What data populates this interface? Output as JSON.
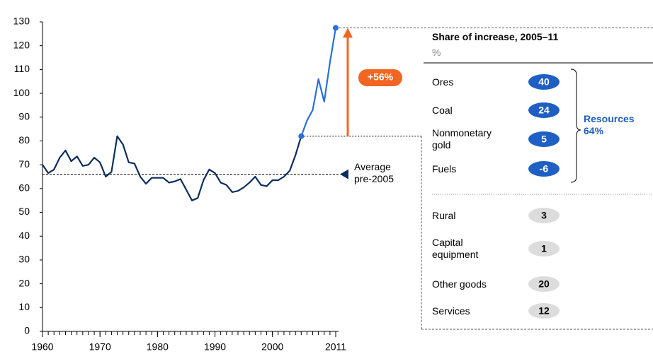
{
  "chart_data": {
    "type": "line",
    "x": [
      1960,
      1961,
      1962,
      1963,
      1964,
      1965,
      1966,
      1967,
      1968,
      1969,
      1970,
      1971,
      1972,
      1973,
      1974,
      1975,
      1976,
      1977,
      1978,
      1979,
      1980,
      1981,
      1982,
      1983,
      1984,
      1985,
      1986,
      1987,
      1988,
      1989,
      1990,
      1991,
      1992,
      1993,
      1994,
      1995,
      1996,
      1997,
      1998,
      1999,
      2000,
      2001,
      2002,
      2003,
      2004,
      2005,
      2006,
      2007,
      2008,
      2009,
      2010,
      2011
    ],
    "series": [
      {
        "color": "#0b2d5e",
        "highlight_color": "#2a6fd6",
        "highlight_from": 2005,
        "values": [
          70,
          66.5,
          68,
          73,
          76,
          71.5,
          73.5,
          69.5,
          70,
          73,
          71,
          65,
          67,
          82,
          78.5,
          71,
          70.5,
          65,
          62,
          64.5,
          64.5,
          64.5,
          62.5,
          63,
          64,
          59.5,
          55,
          56,
          63.5,
          68,
          66.5,
          62.5,
          61.5,
          58.5,
          59,
          60.5,
          62.5,
          65,
          61.5,
          61,
          63.5,
          63.5,
          65,
          67.5,
          74,
          82,
          88.5,
          93,
          106,
          96.5,
          113,
          127.5
        ]
      }
    ],
    "markers_at": [
      2005,
      2011
    ],
    "xlim": [
      1960,
      2011
    ],
    "xticks": [
      1960,
      1970,
      1980,
      1990,
      2000,
      2011
    ],
    "ylim": [
      0,
      130
    ],
    "yticks": [
      0,
      10,
      20,
      30,
      40,
      50,
      60,
      70,
      80,
      90,
      100,
      110,
      120,
      130
    ],
    "reference_line": {
      "value": 66,
      "label": "Average pre-2005"
    },
    "change_annotation": {
      "label": "+56%",
      "color": "#f26522"
    },
    "panel": {
      "title": "Share of increase, 2005–11",
      "unit": "%",
      "groups": [
        {
          "name": "Resources",
          "value": 64,
          "value_label": "64%",
          "color": "#1f5fc4",
          "items": [
            {
              "label": "Ores",
              "value": 40
            },
            {
              "label": "Coal",
              "value": 24
            },
            {
              "label": "Nonmonetary gold",
              "value": 5
            },
            {
              "label": "Fuels",
              "value": -6
            }
          ]
        },
        {
          "color": "#dcdcdc",
          "items": [
            {
              "label": "Rural",
              "value": 3
            },
            {
              "label": "Capital equipment",
              "value": 1
            },
            {
              "label": "Other goods",
              "value": 20
            },
            {
              "label": "Services",
              "value": 12
            }
          ]
        }
      ]
    }
  }
}
